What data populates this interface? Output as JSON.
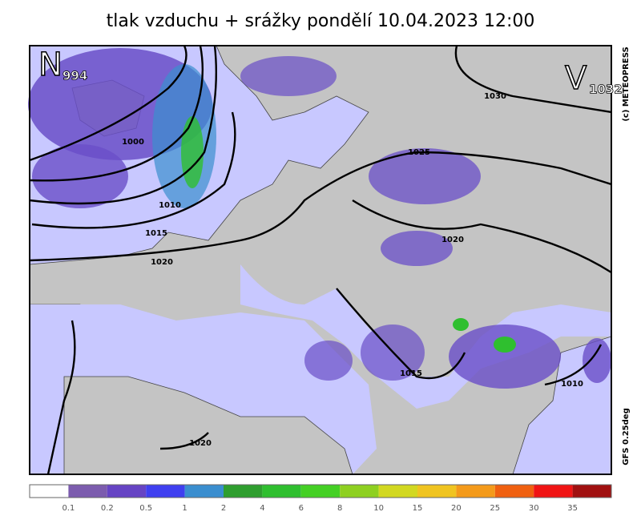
{
  "title": "tlak vzduchu + srážky pondělí 10.04.2023 12:00",
  "pressure_centers": [
    {
      "letter": "N",
      "value": "994"
    },
    {
      "letter": "V",
      "value": "1032"
    }
  ],
  "isobar_labels": [
    "1000",
    "1010",
    "1015",
    "1020",
    "1025",
    "1020",
    "1030",
    "1015",
    "1010",
    "1020"
  ],
  "credit": "(c) METEOPRESS",
  "model": "GFS 0.25deg",
  "colorbar": {
    "labels": [
      0.1,
      0.2,
      0.5,
      1,
      2,
      4,
      6,
      8,
      10,
      15,
      20,
      25,
      30,
      35
    ],
    "colors": [
      "#ffffff",
      "#7c5cae",
      "#6644c4",
      "#3f3ff0",
      "#3a8ecf",
      "#2f9e2f",
      "#2fbf2f",
      "#44d024",
      "#8ed020",
      "#d2d820",
      "#f0c420",
      "#f49a1a",
      "#f06010",
      "#f01414",
      "#a01010"
    ]
  }
}
